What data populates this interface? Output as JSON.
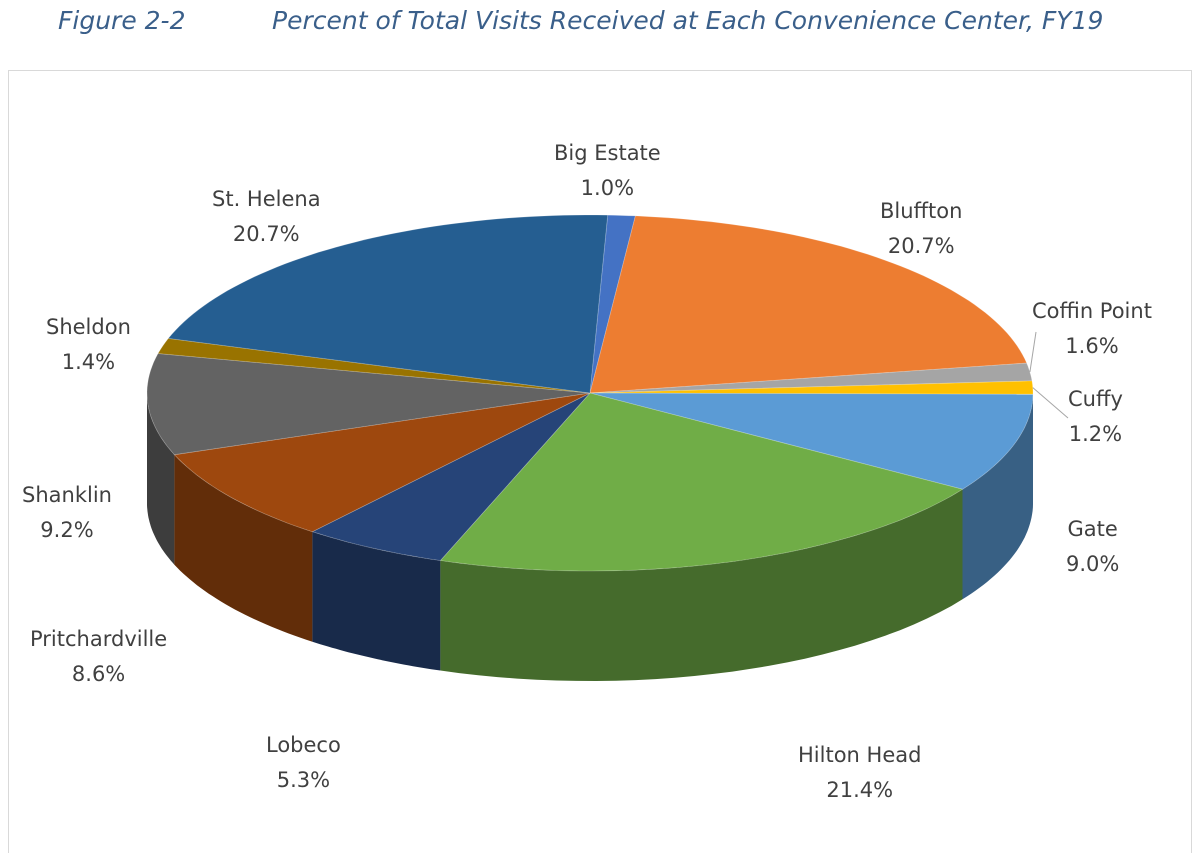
{
  "header": {
    "figure_label": "Figure 2-2",
    "title": "Percent of Total Visits Received at Each Convenience Center, FY19"
  },
  "chart_data": {
    "type": "pie",
    "style": "3d",
    "unit": "%",
    "title": "Percent of Total Visits Received at Each Convenience Center, FY19",
    "slices": [
      {
        "name": "Big Estate",
        "value": 1.0,
        "label": "1.0%",
        "color": "#4472c4"
      },
      {
        "name": "Bluffton",
        "value": 20.7,
        "label": "20.7%",
        "color": "#ed7d31"
      },
      {
        "name": "Coffin Point",
        "value": 1.6,
        "label": "1.6%",
        "color": "#a5a5a5"
      },
      {
        "name": "Cuffy",
        "value": 1.2,
        "label": "1.2%",
        "color": "#ffc000"
      },
      {
        "name": "Gate",
        "value": 9.0,
        "label": "9.0%",
        "color": "#5b9bd5"
      },
      {
        "name": "Hilton Head",
        "value": 21.4,
        "label": "21.4%",
        "color": "#70ad47"
      },
      {
        "name": "Lobeco",
        "value": 5.3,
        "label": "5.3%",
        "color": "#264478"
      },
      {
        "name": "Pritchardville",
        "value": 8.6,
        "label": "8.6%",
        "color": "#9e480e"
      },
      {
        "name": "Shanklin",
        "value": 9.2,
        "label": "9.2%",
        "color": "#636363"
      },
      {
        "name": "Sheldon",
        "value": 1.4,
        "label": "1.4%",
        "color": "#997300"
      },
      {
        "name": "St. Helena",
        "value": 20.7,
        "label": "20.7%",
        "color": "#255e91"
      }
    ]
  }
}
